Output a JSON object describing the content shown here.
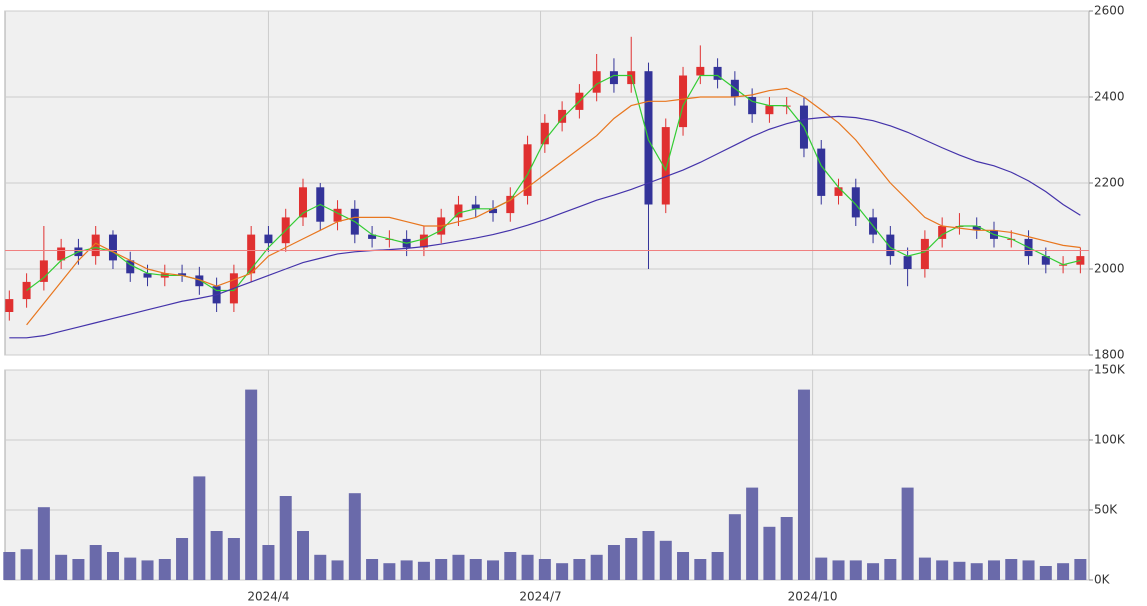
{
  "chart_data": [
    {
      "type": "candlestick",
      "x": [
        0,
        4,
        8,
        12,
        16,
        20,
        24,
        28,
        32,
        36,
        40,
        44,
        48,
        52,
        56,
        60,
        64,
        68,
        72,
        76,
        80,
        84,
        88,
        92,
        96,
        100,
        104,
        108,
        112,
        116,
        120,
        124,
        128,
        132,
        136,
        140,
        144,
        148,
        152,
        156,
        160,
        164,
        168,
        172,
        176,
        180,
        184,
        188,
        192,
        196,
        200,
        204,
        208,
        212,
        216,
        220,
        224,
        228,
        232,
        236,
        240,
        244,
        248
      ],
      "open": [
        1900,
        1930,
        1970,
        2020,
        2050,
        2030,
        2080,
        2020,
        1990,
        1980,
        1990,
        1985,
        1960,
        1920,
        1990,
        2080,
        2060,
        2120,
        2190,
        2110,
        2140,
        2080,
        2070,
        2070,
        2050,
        2080,
        2120,
        2150,
        2140,
        2130,
        2170,
        2290,
        2340,
        2370,
        2410,
        2460,
        2430,
        2460,
        2150,
        2330,
        2450,
        2470,
        2440,
        2400,
        2360,
        2380,
        2380,
        2280,
        2170,
        2190,
        2120,
        2080,
        2030,
        2000,
        2070,
        2100,
        2100,
        2090,
        2070,
        2070,
        2030,
        2010,
        2010
      ],
      "high": [
        1950,
        1990,
        2100,
        2070,
        2070,
        2100,
        2090,
        2040,
        2010,
        2010,
        2010,
        2005,
        1980,
        2010,
        2100,
        2100,
        2140,
        2210,
        2200,
        2160,
        2160,
        2100,
        2090,
        2090,
        2100,
        2140,
        2170,
        2170,
        2160,
        2190,
        2310,
        2360,
        2390,
        2430,
        2500,
        2490,
        2540,
        2480,
        2350,
        2470,
        2520,
        2490,
        2460,
        2420,
        2400,
        2400,
        2400,
        2300,
        2210,
        2210,
        2140,
        2100,
        2050,
        2090,
        2120,
        2130,
        2120,
        2110,
        2090,
        2090,
        2050,
        2030,
        2050
      ],
      "low": [
        1880,
        1910,
        1950,
        2000,
        2010,
        2010,
        2000,
        1970,
        1960,
        1960,
        1970,
        1940,
        1900,
        1900,
        1970,
        2040,
        2040,
        2100,
        2090,
        2090,
        2060,
        2050,
        2050,
        2030,
        2030,
        2060,
        2100,
        2120,
        2110,
        2110,
        2150,
        2270,
        2320,
        2350,
        2390,
        2410,
        2410,
        2000,
        2130,
        2310,
        2430,
        2420,
        2380,
        2340,
        2340,
        2360,
        2260,
        2150,
        2150,
        2100,
        2060,
        2010,
        1960,
        1980,
        2050,
        2080,
        2070,
        2050,
        2050,
        2010,
        1990,
        1990,
        1990
      ],
      "close": [
        1930,
        1970,
        2020,
        2050,
        2030,
        2080,
        2020,
        1990,
        1980,
        1990,
        1985,
        1960,
        1920,
        1990,
        2080,
        2060,
        2120,
        2190,
        2110,
        2140,
        2080,
        2070,
        2070,
        2050,
        2080,
        2120,
        2150,
        2140,
        2130,
        2170,
        2290,
        2340,
        2370,
        2410,
        2460,
        2430,
        2460,
        2150,
        2330,
        2450,
        2470,
        2440,
        2400,
        2360,
        2380,
        2380,
        2280,
        2170,
        2190,
        2120,
        2080,
        2030,
        2000,
        2070,
        2100,
        2100,
        2090,
        2070,
        2070,
        2030,
        2010,
        2010,
        2030
      ],
      "up_color": "#e03030",
      "down_color": "#333399",
      "series": [
        {
          "color": "#33cc33",
          "values": [
            null,
            1950,
            1980,
            2020,
            2040,
            2050,
            2040,
            2010,
            1990,
            1985,
            1985,
            1975,
            1950,
            1950,
            2000,
            2050,
            2090,
            2130,
            2150,
            2130,
            2110,
            2080,
            2070,
            2060,
            2070,
            2090,
            2130,
            2140,
            2140,
            2160,
            2220,
            2300,
            2350,
            2390,
            2430,
            2450,
            2450,
            2300,
            2230,
            2380,
            2450,
            2450,
            2420,
            2390,
            2380,
            2380,
            2330,
            2240,
            2190,
            2150,
            2100,
            2050,
            2030,
            2040,
            2080,
            2100,
            2100,
            2080,
            2070,
            2050,
            2030,
            2010,
            2020
          ]
        },
        {
          "color": "#e8761e",
          "values": [
            null,
            1870,
            1920,
            1970,
            2020,
            2060,
            2040,
            2020,
            2000,
            1990,
            1985,
            1975,
            1960,
            1975,
            1990,
            2030,
            2050,
            2070,
            2090,
            2110,
            2120,
            2120,
            2120,
            2110,
            2100,
            2100,
            2110,
            2120,
            2140,
            2160,
            2190,
            2220,
            2250,
            2280,
            2310,
            2350,
            2380,
            2390,
            2390,
            2395,
            2400,
            2400,
            2400,
            2405,
            2415,
            2420,
            2400,
            2370,
            2340,
            2300,
            2250,
            2200,
            2160,
            2120,
            2100,
            2095,
            2090,
            2090,
            2085,
            2075,
            2065,
            2055,
            2050
          ]
        },
        {
          "color": "#4433aa",
          "values": [
            1840,
            1840,
            1845,
            1855,
            1865,
            1875,
            1885,
            1895,
            1905,
            1915,
            1925,
            1932,
            1940,
            1955,
            1970,
            1985,
            2000,
            2015,
            2025,
            2035,
            2040,
            2043,
            2045,
            2048,
            2052,
            2058,
            2065,
            2072,
            2080,
            2090,
            2102,
            2115,
            2130,
            2145,
            2160,
            2172,
            2185,
            2200,
            2215,
            2230,
            2248,
            2268,
            2288,
            2308,
            2325,
            2338,
            2348,
            2352,
            2355,
            2352,
            2345,
            2333,
            2318,
            2300,
            2282,
            2265,
            2250,
            2240,
            2225,
            2205,
            2180,
            2150,
            2125
          ]
        }
      ],
      "hline": {
        "value": 2043,
        "color": "#f08080"
      },
      "xlim": [
        -1,
        250
      ],
      "xticks": [
        60,
        123,
        186
      ],
      "ylim": [
        1800,
        2600
      ],
      "yticks": [
        1800,
        2000,
        2200,
        2400,
        2600
      ],
      "grid": true
    },
    {
      "type": "bar",
      "x": [
        0,
        4,
        8,
        12,
        16,
        20,
        24,
        28,
        32,
        36,
        40,
        44,
        48,
        52,
        56,
        60,
        64,
        68,
        72,
        76,
        80,
        84,
        88,
        92,
        96,
        100,
        104,
        108,
        112,
        116,
        120,
        124,
        128,
        132,
        136,
        140,
        144,
        148,
        152,
        156,
        160,
        164,
        168,
        172,
        176,
        180,
        184,
        188,
        192,
        196,
        200,
        204,
        208,
        212,
        216,
        220,
        224,
        228,
        232,
        236,
        240,
        244,
        248
      ],
      "values": [
        20000,
        22000,
        52000,
        18000,
        15000,
        25000,
        20000,
        16000,
        14000,
        15000,
        30000,
        74000,
        35000,
        30000,
        136000,
        25000,
        60000,
        35000,
        18000,
        14000,
        62000,
        15000,
        12000,
        14000,
        13000,
        15000,
        18000,
        15000,
        14000,
        20000,
        18000,
        15000,
        12000,
        15000,
        18000,
        25000,
        30000,
        35000,
        28000,
        20000,
        15000,
        20000,
        47000,
        66000,
        38000,
        45000,
        136000,
        16000,
        14000,
        14000,
        12000,
        15000,
        66000,
        16000,
        14000,
        13000,
        12000,
        14000,
        15000,
        14000,
        10000,
        12000,
        15000
      ],
      "color": "#6a6aaa",
      "xlim": [
        -1,
        250
      ],
      "xticks": [
        {
          "value": 60,
          "label": "2024/4"
        },
        {
          "value": 123,
          "label": "2024/7"
        },
        {
          "value": 186,
          "label": "2024/10"
        }
      ],
      "ylim": [
        0,
        150000
      ],
      "yticks": [
        {
          "value": 0,
          "label": "0K"
        },
        {
          "value": 50000,
          "label": "50K"
        },
        {
          "value": 100000,
          "label": "100K"
        },
        {
          "value": 150000,
          "label": "150K"
        }
      ],
      "grid": true
    }
  ]
}
